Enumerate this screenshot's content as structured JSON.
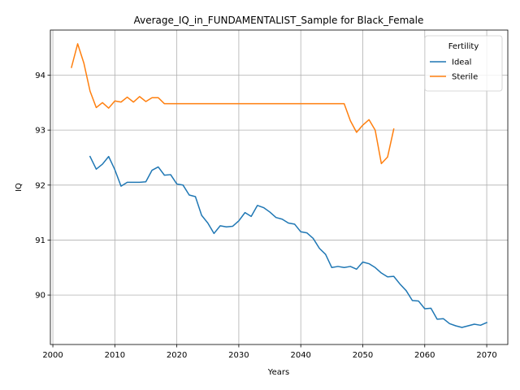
{
  "chart_data": {
    "type": "line",
    "title": "Average_IQ_in_FUNDAMENTALIST_Sample for Black_Female",
    "xlabel": "Years",
    "ylabel": "IQ",
    "xlim": [
      1999.6,
      2073.4
    ],
    "ylim": [
      89.1,
      94.82
    ],
    "xticks": [
      2000,
      2010,
      2020,
      2030,
      2040,
      2050,
      2060,
      2070
    ],
    "yticks": [
      90,
      91,
      92,
      93,
      94
    ],
    "grid": true,
    "legend": {
      "title": "Fertility",
      "placement": "top-right"
    },
    "series": [
      {
        "name": "Ideal",
        "color": "#1f77b4",
        "x": [
          2006,
          2007,
          2008,
          2009,
          2010,
          2011,
          2012,
          2013,
          2014,
          2015,
          2016,
          2017,
          2018,
          2019,
          2020,
          2021,
          2022,
          2023,
          2024,
          2025,
          2026,
          2027,
          2028,
          2029,
          2030,
          2031,
          2032,
          2033,
          2034,
          2035,
          2036,
          2037,
          2038,
          2039,
          2040,
          2041,
          2042,
          2043,
          2044,
          2045,
          2046,
          2047,
          2048,
          2049,
          2050,
          2051,
          2052,
          2053,
          2054,
          2055,
          2056,
          2057,
          2058,
          2059,
          2060,
          2061,
          2062,
          2063,
          2064,
          2065,
          2066,
          2067,
          2068,
          2069,
          2070
        ],
        "y": [
          92.52,
          92.29,
          92.38,
          92.52,
          92.28,
          91.98,
          92.05,
          92.05,
          92.05,
          92.06,
          92.27,
          92.33,
          92.18,
          92.19,
          92.02,
          92.0,
          91.82,
          91.79,
          91.45,
          91.31,
          91.12,
          91.26,
          91.24,
          91.25,
          91.35,
          91.5,
          91.43,
          91.63,
          91.59,
          91.51,
          91.41,
          91.38,
          91.31,
          91.29,
          91.15,
          91.13,
          91.03,
          90.85,
          90.74,
          90.5,
          90.52,
          90.5,
          90.52,
          90.47,
          90.6,
          90.57,
          90.5,
          90.4,
          90.33,
          90.34,
          90.2,
          90.08,
          89.9,
          89.89,
          89.75,
          89.76,
          89.56,
          89.57,
          89.48,
          89.44,
          89.41,
          89.44,
          89.47,
          89.45,
          89.5
        ]
      },
      {
        "name": "Sterile",
        "color": "#ff7f0e",
        "x": [
          2003,
          2004,
          2005,
          2006,
          2007,
          2008,
          2009,
          2010,
          2011,
          2012,
          2013,
          2014,
          2015,
          2016,
          2017,
          2018,
          2019,
          2020,
          2021,
          2022,
          2023,
          2024,
          2025,
          2026,
          2027,
          2028,
          2029,
          2030,
          2031,
          2032,
          2033,
          2034,
          2035,
          2036,
          2037,
          2038,
          2039,
          2040,
          2041,
          2042,
          2043,
          2044,
          2045,
          2046,
          2047,
          2048,
          2049,
          2050,
          2051,
          2052,
          2053,
          2054,
          2055
        ],
        "y": [
          94.14,
          94.57,
          94.22,
          93.71,
          93.41,
          93.5,
          93.4,
          93.53,
          93.51,
          93.6,
          93.51,
          93.61,
          93.52,
          93.59,
          93.59,
          93.48,
          93.48,
          93.48,
          93.48,
          93.48,
          93.48,
          93.48,
          93.48,
          93.48,
          93.48,
          93.48,
          93.48,
          93.48,
          93.48,
          93.48,
          93.48,
          93.48,
          93.48,
          93.48,
          93.48,
          93.48,
          93.48,
          93.48,
          93.48,
          93.48,
          93.48,
          93.48,
          93.48,
          93.48,
          93.48,
          93.17,
          92.96,
          93.09,
          93.19,
          93.0,
          92.39,
          92.51,
          93.02
        ]
      }
    ]
  }
}
